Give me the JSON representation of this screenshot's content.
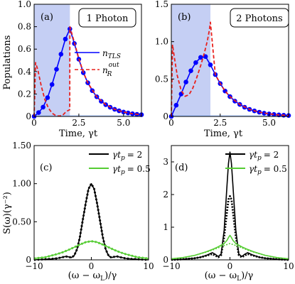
{
  "figure": {
    "panel_labels": [
      "(a)",
      "(b)",
      "(c)",
      "(d)"
    ],
    "boxes": [
      "1 Photon",
      "2 Photons"
    ],
    "legend_top": {
      "n_tls": "n",
      "n_tls_sub": "TLS",
      "n_r": "n",
      "n_r_sup": "out",
      "n_r_sub": "R"
    },
    "legend_bottom": {
      "s1_lhs": "γt",
      "s1_sub": "p",
      "s1_rhs": "= 2",
      "s2_lhs": "γt",
      "s2_sub": "p",
      "s2_rhs": "= 0.5"
    },
    "ylabel_top": "Populations",
    "xlabel_top": "Time, γt",
    "ylabel_bottom": "S(ω)(γ⁻²)",
    "xlabel_bottom": "(ω − ω",
    "xlabel_bottom_sub": "L",
    "xlabel_bottom_tail": ")/γ",
    "colors": {
      "blue": "#0000ff",
      "red": "#e8201c",
      "black": "#000000",
      "green": "#55cc33",
      "shade": "#c5cff4"
    }
  },
  "chart_data": [
    {
      "type": "line",
      "panel": "(a)",
      "box_label": "1 Photon",
      "xlabel": "Time, γt",
      "ylabel": "Populations",
      "xlim": [
        0,
        6
      ],
      "ylim": [
        0,
        1.0
      ],
      "xticks": [
        0,
        2.5,
        5.0
      ],
      "xtick_labels": [
        "0",
        "2.5",
        "5.0"
      ],
      "yticks": [
        0,
        0.2,
        0.4,
        0.6,
        0.8,
        1.0
      ],
      "ytick_labels": [
        "0",
        "0.2",
        "0.4",
        "0.6",
        "0.8",
        "1.0"
      ],
      "shaded_x": [
        0,
        2
      ],
      "series": [
        {
          "name": "n_TLS",
          "style": "solid-blue-dots",
          "x": [
            0,
            0.25,
            0.5,
            0.75,
            1.0,
            1.25,
            1.5,
            1.75,
            2.0,
            2.25,
            2.5,
            2.75,
            3.0,
            3.25,
            3.5,
            3.75,
            4.0,
            4.25,
            4.5,
            4.75,
            5.0,
            5.25,
            5.5,
            5.75,
            6.0
          ],
          "y": [
            0,
            0.034,
            0.083,
            0.168,
            0.285,
            0.42,
            0.555,
            0.69,
            0.78,
            0.65,
            0.51,
            0.39,
            0.3,
            0.23,
            0.175,
            0.135,
            0.105,
            0.082,
            0.064,
            0.05,
            0.039,
            0.031,
            0.024,
            0.019,
            0.015
          ]
        },
        {
          "name": "n_R^out",
          "style": "dashed-red",
          "x": [
            0,
            0.08,
            0.2,
            0.4,
            0.6,
            0.8,
            1.0,
            1.2,
            1.4,
            1.6,
            1.8,
            1.99,
            2.0,
            2.25,
            2.5,
            2.75,
            3.0,
            3.5,
            4.0,
            4.5,
            5.0,
            5.5,
            6.0
          ],
          "y": [
            0,
            0.48,
            0.42,
            0.27,
            0.15,
            0.075,
            0.03,
            0.008,
            0.003,
            0.012,
            0.045,
            0.06,
            0.8,
            0.66,
            0.515,
            0.395,
            0.3,
            0.175,
            0.105,
            0.064,
            0.039,
            0.024,
            0.015
          ]
        }
      ]
    },
    {
      "type": "line",
      "panel": "(b)",
      "box_label": "2 Photons",
      "xlabel": "Time, γt",
      "xlim": [
        0,
        6
      ],
      "ylim": [
        0,
        1.5
      ],
      "xticks": [
        0,
        2.5,
        5.0
      ],
      "xtick_labels": [
        "0",
        "2.5",
        "5.0"
      ],
      "yticks": [
        0,
        0.5,
        1.0,
        1.5
      ],
      "ytick_labels": [
        "0",
        "0.5",
        "1.0",
        "1.5"
      ],
      "shaded_x": [
        0,
        2
      ],
      "series": [
        {
          "name": "n_TLS",
          "style": "solid-blue-dots",
          "x": [
            0,
            0.25,
            0.5,
            0.75,
            1.0,
            1.25,
            1.5,
            1.75,
            2.0,
            2.25,
            2.5,
            2.75,
            3.0,
            3.25,
            3.5,
            3.75,
            4.0,
            4.25,
            4.5,
            4.75,
            5.0,
            5.25,
            5.5,
            5.75,
            6.0
          ],
          "y": [
            0,
            0.15,
            0.3,
            0.46,
            0.61,
            0.72,
            0.79,
            0.8,
            0.69,
            0.56,
            0.44,
            0.34,
            0.265,
            0.205,
            0.16,
            0.123,
            0.095,
            0.074,
            0.057,
            0.044,
            0.034,
            0.027,
            0.021,
            0.016,
            0.012
          ]
        },
        {
          "name": "n_R^out",
          "style": "dashed-red",
          "x": [
            0,
            0.06,
            0.15,
            0.3,
            0.5,
            0.7,
            0.9,
            1.1,
            1.3,
            1.5,
            1.7,
            1.85,
            1.95,
            2.0,
            2.25,
            2.5,
            2.75,
            3.0,
            3.5,
            4.0,
            4.5,
            5.0,
            5.5,
            6.0
          ],
          "y": [
            0,
            0.96,
            0.8,
            0.55,
            0.35,
            0.27,
            0.29,
            0.38,
            0.52,
            0.68,
            0.86,
            1.02,
            1.16,
            1.26,
            0.56,
            0.44,
            0.34,
            0.265,
            0.16,
            0.095,
            0.057,
            0.034,
            0.021,
            0.012
          ]
        }
      ]
    },
    {
      "type": "line",
      "panel": "(c)",
      "xlabel": "(ω − ω_L)/γ",
      "ylabel": "S(ω)(γ⁻²)",
      "xlim": [
        -10,
        10
      ],
      "ylim": [
        0,
        1.5
      ],
      "xticks": [
        -10,
        0,
        10
      ],
      "xtick_labels": [
        "−10",
        "0",
        "10"
      ],
      "yticks": [
        0,
        0.5,
        1.0,
        1.5
      ],
      "ytick_labels": [
        "0",
        "0.50",
        "1.00",
        "1.50"
      ],
      "series": [
        {
          "name": "γt_p = 2",
          "style": "solid-black-with-dotted-overlay",
          "x": [
            -10,
            -9,
            -8,
            -7,
            -6,
            -5,
            -4.5,
            -4,
            -3.5,
            -3,
            -2.5,
            -2,
            -1.5,
            -1,
            -0.5,
            0,
            0.5,
            1,
            1.5,
            2,
            2.5,
            3,
            3.5,
            4,
            4.5,
            5,
            6,
            7,
            8,
            9,
            10
          ],
          "y": [
            0,
            0.005,
            0.008,
            0.012,
            0.02,
            0.035,
            0.045,
            0.04,
            0.03,
            0.055,
            0.14,
            0.3,
            0.52,
            0.74,
            0.93,
            1.0,
            0.93,
            0.74,
            0.52,
            0.3,
            0.14,
            0.055,
            0.03,
            0.04,
            0.045,
            0.035,
            0.02,
            0.012,
            0.008,
            0.005,
            0
          ]
        },
        {
          "name": "γt_p = 0.5",
          "style": "solid-green-with-dotted-overlay",
          "x": [
            -10,
            -8,
            -6,
            -5,
            -4,
            -3,
            -2,
            -1,
            0,
            1,
            2,
            3,
            4,
            5,
            6,
            8,
            10
          ],
          "y": [
            0.018,
            0.035,
            0.075,
            0.1,
            0.13,
            0.165,
            0.2,
            0.232,
            0.245,
            0.232,
            0.2,
            0.165,
            0.13,
            0.1,
            0.075,
            0.035,
            0.018
          ]
        }
      ]
    },
    {
      "type": "line",
      "panel": "(d)",
      "xlabel": "(ω − ω_L)/γ",
      "xlim": [
        -10,
        10
      ],
      "ylim": [
        0,
        3.5
      ],
      "xticks": [
        -10,
        0,
        10
      ],
      "xtick_labels": [
        "−10",
        "0",
        "10"
      ],
      "yticks": [
        0,
        1,
        2,
        3
      ],
      "ytick_labels": [
        "0",
        "1",
        "2",
        "3"
      ],
      "series": [
        {
          "name": "γt_p = 2",
          "style": "solid-black",
          "x": [
            -10,
            -8,
            -6,
            -5,
            -4,
            -3,
            -2.5,
            -2,
            -1.5,
            -1,
            -0.5,
            -0.25,
            0,
            0.25,
            0.5,
            1,
            1.5,
            2,
            2.5,
            3,
            4,
            5,
            6,
            8,
            10
          ],
          "y": [
            0,
            0.02,
            0.05,
            0.08,
            0.14,
            0.22,
            0.17,
            0.1,
            0.18,
            0.9,
            2.3,
            2.95,
            3.3,
            2.95,
            2.3,
            0.9,
            0.18,
            0.1,
            0.17,
            0.22,
            0.14,
            0.08,
            0.05,
            0.02,
            0
          ]
        },
        {
          "name": "γt_p = 2 (dotted)",
          "style": "dotted-black",
          "x": [
            -10,
            -8,
            -6,
            -5,
            -4,
            -3,
            -2.5,
            -2,
            -1.5,
            -1,
            -0.5,
            -0.25,
            0,
            0.25,
            0.5,
            1,
            1.5,
            2,
            2.5,
            3,
            4,
            5,
            6,
            8,
            10
          ],
          "y": [
            0,
            0.02,
            0.05,
            0.08,
            0.13,
            0.18,
            0.13,
            0.08,
            0.15,
            0.7,
            1.5,
            1.85,
            1.95,
            1.85,
            1.5,
            0.7,
            0.15,
            0.08,
            0.13,
            0.18,
            0.13,
            0.08,
            0.05,
            0.02,
            0
          ]
        },
        {
          "name": "γt_p = 0.5",
          "style": "solid-green",
          "x": [
            -10,
            -8,
            -6,
            -4,
            -3,
            -2,
            -1,
            -0.5,
            -0.2,
            0,
            0.2,
            0.5,
            1,
            2,
            3,
            4,
            6,
            8,
            10
          ],
          "y": [
            0.03,
            0.07,
            0.14,
            0.25,
            0.32,
            0.4,
            0.5,
            0.6,
            0.7,
            0.75,
            0.7,
            0.6,
            0.5,
            0.4,
            0.32,
            0.25,
            0.14,
            0.07,
            0.03
          ]
        },
        {
          "name": "γt_p = 0.5 (dotted)",
          "style": "dotted-green",
          "x": [
            -10,
            -8,
            -6,
            -4,
            -3,
            -2,
            -1,
            0,
            1,
            2,
            3,
            4,
            6,
            8,
            10
          ],
          "y": [
            0.03,
            0.07,
            0.14,
            0.24,
            0.3,
            0.37,
            0.44,
            0.5,
            0.44,
            0.37,
            0.3,
            0.24,
            0.14,
            0.07,
            0.03
          ]
        }
      ]
    }
  ]
}
